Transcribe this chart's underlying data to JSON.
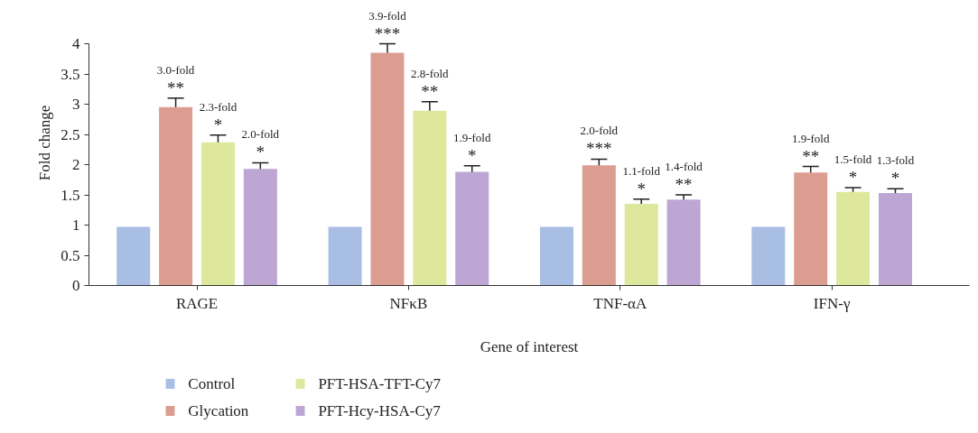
{
  "chart_data": {
    "type": "bar",
    "xlabel": "Gene of interest",
    "ylabel": "Fold change",
    "categories": [
      "RAGE",
      "NFκB",
      "TNF-αA",
      "IFN-γ"
    ],
    "ylim": [
      0,
      4
    ],
    "yticks": [
      0,
      0.5,
      1,
      1.5,
      2,
      2.5,
      3,
      3.5,
      4
    ],
    "grid": false,
    "legend": "bottom",
    "series": [
      {
        "name": "Control",
        "color": "#a9bee3",
        "values": [
          0.97,
          0.97,
          0.97,
          0.97
        ]
      },
      {
        "name": "Glycation",
        "color": "#dc9d91",
        "values": [
          2.95,
          3.85,
          1.99,
          1.87
        ],
        "errors": [
          0.15,
          0.15,
          0.1,
          0.1
        ]
      },
      {
        "name": "PFT-HSA-TFT-Cy7",
        "color": "#dde89d",
        "values": [
          2.37,
          2.89,
          1.35,
          1.55
        ],
        "errors": [
          0.12,
          0.15,
          0.08,
          0.07
        ]
      },
      {
        "name": "PFT-Hcy-HSA-Cy7",
        "color": "#bda6d3",
        "values": [
          1.93,
          1.88,
          1.42,
          1.53
        ],
        "errors": [
          0.1,
          0.1,
          0.08,
          0.07
        ]
      }
    ],
    "annotations": [
      "**",
      "3.0-fold",
      "*",
      "2.3-fold",
      "*",
      "2.0-fold",
      "***",
      "3.9-fold",
      "**",
      "2.8-fold",
      "*",
      "1.9-fold",
      "***",
      "2.0-fold",
      "*",
      "1.1-fold",
      "**",
      "1.4-fold",
      "**",
      "1.9-fold",
      "*",
      "1.5-fold",
      "*",
      "1.3-fold"
    ]
  }
}
